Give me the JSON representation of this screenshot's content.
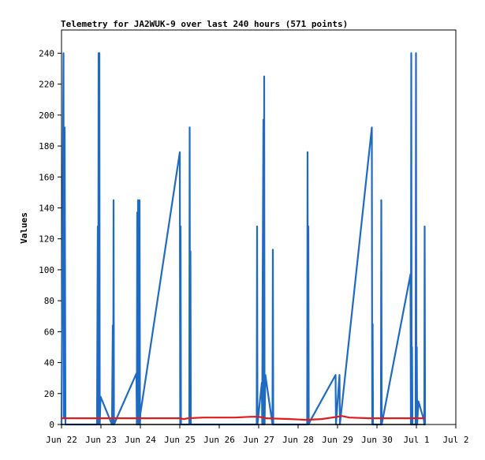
{
  "chart_data": {
    "type": "line",
    "title": "Telemetry for JA2WUK-9 over last 240 hours (571 points)",
    "xlabel": "",
    "ylabel": "Values",
    "xlim": [
      "Jun 22",
      "Jul 2"
    ],
    "ylim": [
      0,
      255
    ],
    "grid": false,
    "legend": "none",
    "x_tick_labels": [
      "Jun 22",
      "Jun 23",
      "Jun 24",
      "Jun 25",
      "Jun 26",
      "Jun 27",
      "Jun 28",
      "Jun 29",
      "Jun 30",
      "Jul 1",
      "Jul 2"
    ],
    "y_ticks": [
      0,
      20,
      40,
      60,
      80,
      100,
      120,
      140,
      160,
      180,
      200,
      220,
      240
    ],
    "series": [
      {
        "color": "#1f6bc4",
        "points": [
          [
            0.0,
            0
          ],
          [
            0.05,
            240
          ],
          [
            0.06,
            5
          ],
          [
            0.08,
            192
          ],
          [
            0.1,
            0
          ],
          [
            0.9,
            0
          ],
          [
            0.92,
            128
          ],
          [
            0.93,
            0
          ],
          [
            0.94,
            240
          ],
          [
            0.95,
            0
          ],
          [
            0.96,
            240
          ],
          [
            0.97,
            0
          ],
          [
            0.99,
            18
          ],
          [
            1.28,
            0
          ],
          [
            1.3,
            64
          ],
          [
            1.31,
            0
          ],
          [
            1.32,
            145
          ],
          [
            1.33,
            0
          ],
          [
            1.9,
            33
          ],
          [
            1.91,
            0
          ],
          [
            1.92,
            137
          ],
          [
            1.93,
            0
          ],
          [
            1.94,
            145
          ],
          [
            1.95,
            120
          ],
          [
            1.96,
            0
          ],
          [
            1.97,
            113
          ],
          [
            1.98,
            145
          ],
          [
            1.99,
            0
          ],
          [
            2.0,
            7
          ],
          [
            3.0,
            176
          ],
          [
            3.01,
            0
          ],
          [
            3.02,
            128
          ],
          [
            3.03,
            0
          ],
          [
            3.24,
            0
          ],
          [
            3.25,
            192
          ],
          [
            3.26,
            0
          ],
          [
            3.27,
            112
          ],
          [
            3.28,
            0
          ],
          [
            3.29,
            0
          ],
          [
            4.95,
            0
          ],
          [
            4.96,
            128
          ],
          [
            4.97,
            0
          ],
          [
            5.08,
            27
          ],
          [
            5.09,
            0
          ],
          [
            5.1,
            85
          ],
          [
            5.11,
            141
          ],
          [
            5.12,
            197
          ],
          [
            5.13,
            0
          ],
          [
            5.14,
            225
          ],
          [
            5.15,
            0
          ],
          [
            5.17,
            32
          ],
          [
            5.35,
            0
          ],
          [
            5.36,
            113
          ],
          [
            5.37,
            0
          ],
          [
            6.23,
            0
          ],
          [
            6.24,
            176
          ],
          [
            6.25,
            0
          ],
          [
            6.26,
            128
          ],
          [
            6.27,
            0
          ],
          [
            6.3,
            2
          ],
          [
            6.95,
            32
          ],
          [
            6.96,
            0
          ],
          [
            7.05,
            32
          ],
          [
            7.06,
            0
          ],
          [
            7.87,
            192
          ],
          [
            7.88,
            0
          ],
          [
            7.89,
            65
          ],
          [
            7.9,
            0
          ],
          [
            8.1,
            0
          ],
          [
            8.11,
            145
          ],
          [
            8.12,
            0
          ],
          [
            8.85,
            97
          ],
          [
            8.86,
            0
          ],
          [
            8.87,
            240
          ],
          [
            8.88,
            0
          ],
          [
            8.89,
            50
          ],
          [
            8.9,
            0
          ],
          [
            8.98,
            0
          ],
          [
            8.99,
            240
          ],
          [
            9.0,
            0
          ],
          [
            9.01,
            50
          ],
          [
            9.02,
            0
          ],
          [
            9.05,
            15
          ],
          [
            9.19,
            3
          ],
          [
            9.2,
            0
          ],
          [
            9.21,
            128
          ],
          [
            9.22,
            0
          ]
        ]
      },
      {
        "color": "#e01b1b",
        "points": [
          [
            0.0,
            4
          ],
          [
            1.0,
            4
          ],
          [
            2.0,
            4
          ],
          [
            3.0,
            4
          ],
          [
            3.1,
            3.5
          ],
          [
            3.2,
            4
          ],
          [
            3.6,
            4.5
          ],
          [
            4.4,
            4.5
          ],
          [
            4.8,
            5
          ],
          [
            5.0,
            5
          ],
          [
            5.2,
            4
          ],
          [
            5.8,
            3.5
          ],
          [
            6.2,
            3
          ],
          [
            6.6,
            3.5
          ],
          [
            7.0,
            5
          ],
          [
            7.1,
            5.5
          ],
          [
            7.3,
            4.5
          ],
          [
            7.8,
            4
          ],
          [
            8.5,
            4
          ],
          [
            9.0,
            4
          ],
          [
            9.2,
            4
          ]
        ]
      },
      {
        "color": "#000000",
        "points": [
          [
            0.0,
            0
          ],
          [
            9.22,
            0
          ]
        ]
      }
    ]
  }
}
